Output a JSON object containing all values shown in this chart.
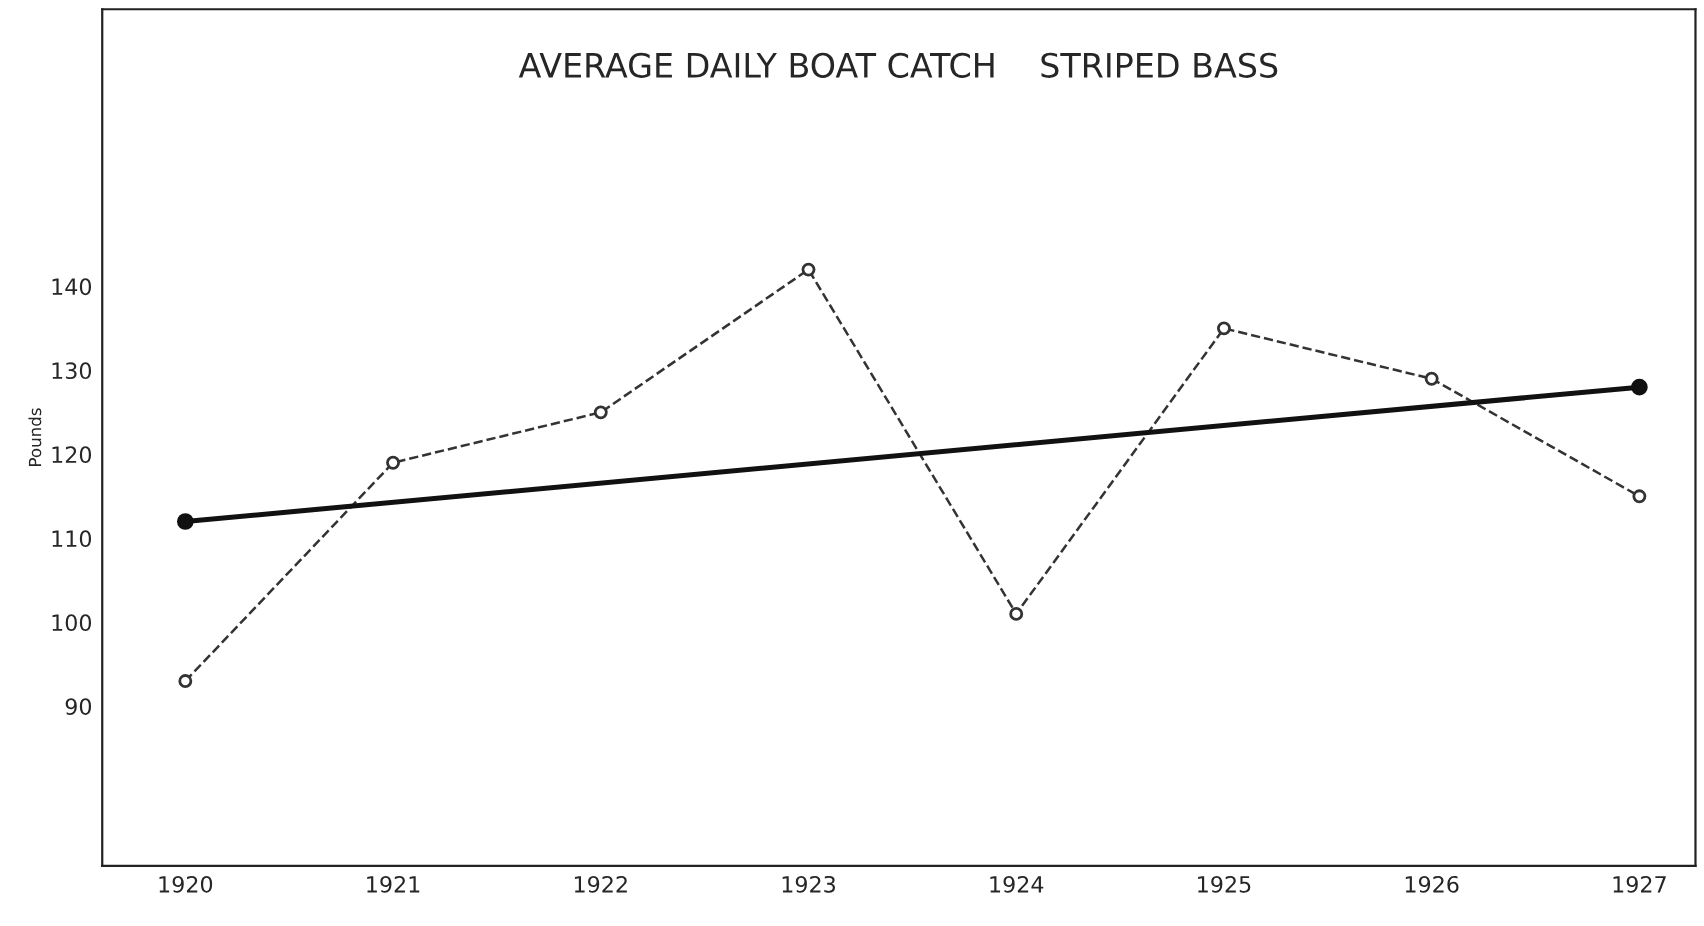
{
  "chart_data": {
    "type": "line",
    "title": "AVERAGE DAILY BOAT CATCH    STRIPED BASS",
    "ylabel": "Pounds",
    "x": [
      1920,
      1921,
      1922,
      1923,
      1924,
      1925,
      1926,
      1927
    ],
    "series": [
      {
        "color": "#333333",
        "values": [
          93,
          119,
          125,
          142,
          101,
          135,
          129,
          115
        ],
        "line_style": "dashed",
        "marker": "circle"
      },
      {
        "type": "line",
        "color": "#111111",
        "x": [
          1920,
          1927
        ],
        "values": [
          112,
          128
        ],
        "line_style": "solid",
        "marker": "circle"
      }
    ],
    "xlim": [
      1919.6,
      1927.27
    ],
    "xticks": [
      1920,
      1921,
      1922,
      1923,
      1924,
      1925,
      1926,
      1927
    ],
    "ylim": [
      71,
      173
    ],
    "yticks": [
      90,
      100,
      110,
      120,
      130,
      140
    ],
    "grid": false,
    "legend": false
  }
}
